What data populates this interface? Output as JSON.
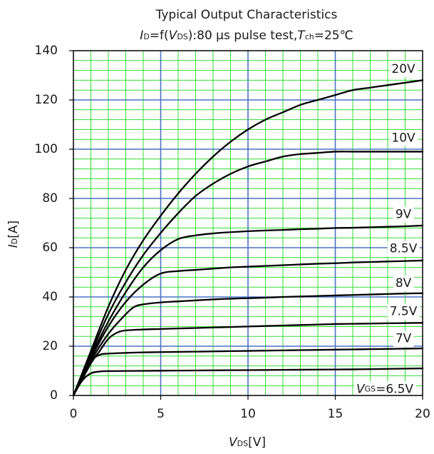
{
  "chart_data": {
    "type": "line",
    "title": "Typical Output Characteristics",
    "subtitle": {
      "id_symbol": "I",
      "id_sub": "D",
      "mid1": "=f(",
      "vds_symbol": "V",
      "vds_sub": "DS",
      "mid2": "):80 μs pulse test,",
      "t_symbol": "T",
      "t_sub": "ch",
      "tail": "=25℃"
    },
    "xlabel": {
      "symbol": "V",
      "sub": "DS",
      "unit": "[V]"
    },
    "ylabel": {
      "symbol": "I",
      "sub": "D",
      "unit": "[A]"
    },
    "xlim": [
      0,
      20
    ],
    "ylim": [
      0,
      140
    ],
    "x_ticks": [
      0,
      5,
      10,
      15,
      20
    ],
    "y_ticks": [
      0,
      20,
      40,
      60,
      80,
      100,
      120,
      140
    ],
    "minor_x_step": 1,
    "minor_y_step": 4,
    "grid": true,
    "colors": {
      "minor_grid": "#33dd33",
      "major_grid": "#4a72c4",
      "curve": "#000000",
      "axis": "#000000"
    },
    "series": [
      {
        "name": "20V",
        "points": [
          [
            0,
            0
          ],
          [
            1,
            18
          ],
          [
            2,
            36
          ],
          [
            3,
            51
          ],
          [
            4,
            63
          ],
          [
            5,
            73
          ],
          [
            6,
            82
          ],
          [
            7,
            90
          ],
          [
            8,
            97
          ],
          [
            9,
            103
          ],
          [
            10,
            108
          ],
          [
            11,
            112
          ],
          [
            12,
            115
          ],
          [
            13,
            118
          ],
          [
            14,
            120
          ],
          [
            15,
            122
          ],
          [
            16,
            124
          ],
          [
            17,
            125
          ],
          [
            18,
            126
          ],
          [
            19,
            127
          ],
          [
            20,
            128
          ]
        ]
      },
      {
        "name": "10V",
        "points": [
          [
            0,
            0
          ],
          [
            1,
            17
          ],
          [
            2,
            33
          ],
          [
            3,
            46
          ],
          [
            4,
            57
          ],
          [
            5,
            66
          ],
          [
            6,
            74
          ],
          [
            7,
            81
          ],
          [
            8,
            86
          ],
          [
            9,
            90
          ],
          [
            10,
            93
          ],
          [
            11,
            95
          ],
          [
            12,
            97
          ],
          [
            13,
            98
          ],
          [
            14,
            98.5
          ],
          [
            15,
            99
          ],
          [
            16,
            99
          ],
          [
            17,
            99
          ],
          [
            18,
            99
          ],
          [
            19,
            99
          ],
          [
            20,
            99
          ]
        ]
      },
      {
        "name": "9V",
        "points": [
          [
            0,
            0
          ],
          [
            1,
            16
          ],
          [
            2,
            30
          ],
          [
            3,
            42
          ],
          [
            4,
            52
          ],
          [
            5,
            59
          ],
          [
            6,
            63.5
          ],
          [
            7,
            65
          ],
          [
            8,
            65.8
          ],
          [
            9,
            66.3
          ],
          [
            10,
            66.7
          ],
          [
            11,
            67
          ],
          [
            12,
            67.2
          ],
          [
            13,
            67.5
          ],
          [
            14,
            67.7
          ],
          [
            15,
            68
          ],
          [
            16,
            68.1
          ],
          [
            17,
            68.3
          ],
          [
            18,
            68.5
          ],
          [
            19,
            68.7
          ],
          [
            20,
            69
          ]
        ]
      },
      {
        "name": "8.5V",
        "points": [
          [
            0,
            0
          ],
          [
            1,
            15
          ],
          [
            2,
            28
          ],
          [
            3,
            38
          ],
          [
            4,
            45
          ],
          [
            5,
            49.5
          ],
          [
            6,
            50.5
          ],
          [
            7,
            51
          ],
          [
            8,
            51.5
          ],
          [
            9,
            52
          ],
          [
            10,
            52.3
          ],
          [
            11,
            52.6
          ],
          [
            12,
            52.9
          ],
          [
            13,
            53.2
          ],
          [
            14,
            53.5
          ],
          [
            15,
            53.7
          ],
          [
            16,
            54
          ],
          [
            17,
            54.2
          ],
          [
            18,
            54.4
          ],
          [
            19,
            54.6
          ],
          [
            20,
            54.8
          ]
        ]
      },
      {
        "name": "8V",
        "points": [
          [
            0,
            0
          ],
          [
            1,
            14
          ],
          [
            2,
            25
          ],
          [
            3,
            33
          ],
          [
            3.5,
            36
          ],
          [
            4,
            37
          ],
          [
            5,
            37.8
          ],
          [
            6,
            38.2
          ],
          [
            7,
            38.6
          ],
          [
            8,
            39
          ],
          [
            9,
            39.3
          ],
          [
            10,
            39.5
          ],
          [
            11,
            39.7
          ],
          [
            12,
            40
          ],
          [
            13,
            40.2
          ],
          [
            14,
            40.4
          ],
          [
            15,
            40.6
          ],
          [
            16,
            40.8
          ],
          [
            17,
            41
          ],
          [
            18,
            41.2
          ],
          [
            19,
            41.4
          ],
          [
            20,
            41.5
          ]
        ]
      },
      {
        "name": "7.5V",
        "points": [
          [
            0,
            0
          ],
          [
            1,
            13
          ],
          [
            1.5,
            18
          ],
          [
            2,
            23
          ],
          [
            2.5,
            25.5
          ],
          [
            3,
            26.4
          ],
          [
            4,
            26.8
          ],
          [
            5,
            27
          ],
          [
            6,
            27.2
          ],
          [
            7,
            27.4
          ],
          [
            8,
            27.6
          ],
          [
            9,
            27.8
          ],
          [
            10,
            28
          ],
          [
            11,
            28.2
          ],
          [
            12,
            28.4
          ],
          [
            13,
            28.6
          ],
          [
            14,
            28.8
          ],
          [
            15,
            29
          ],
          [
            16,
            29.1
          ],
          [
            17,
            29.2
          ],
          [
            18,
            29.3
          ],
          [
            19,
            29.4
          ],
          [
            20,
            29.5
          ]
        ]
      },
      {
        "name": "7V",
        "points": [
          [
            0,
            0
          ],
          [
            0.5,
            8
          ],
          [
            1,
            14
          ],
          [
            1.5,
            16.5
          ],
          [
            2,
            17
          ],
          [
            3,
            17.3
          ],
          [
            4,
            17.5
          ],
          [
            5,
            17.6
          ],
          [
            6,
            17.7
          ],
          [
            7,
            17.8
          ],
          [
            8,
            17.9
          ],
          [
            9,
            18
          ],
          [
            10,
            18.1
          ],
          [
            11,
            18.2
          ],
          [
            12,
            18.3
          ],
          [
            13,
            18.4
          ],
          [
            14,
            18.5
          ],
          [
            15,
            18.6
          ],
          [
            16,
            18.7
          ],
          [
            17,
            18.8
          ],
          [
            18,
            18.9
          ],
          [
            19,
            19
          ],
          [
            20,
            19.1
          ]
        ]
      },
      {
        "name": "V_GS=6.5V",
        "points": [
          [
            0,
            0
          ],
          [
            0.5,
            6
          ],
          [
            1,
            9
          ],
          [
            1.5,
            9.7
          ],
          [
            2,
            9.9
          ],
          [
            4,
            10
          ],
          [
            6,
            10.1
          ],
          [
            8,
            10.2
          ],
          [
            10,
            10.3
          ],
          [
            12,
            10.4
          ],
          [
            14,
            10.5
          ],
          [
            16,
            10.6
          ],
          [
            18,
            10.8
          ],
          [
            20,
            11
          ]
        ]
      }
    ],
    "curve_labels": [
      {
        "text": "20V",
        "x": 18.9,
        "y": 132.5
      },
      {
        "text": "10V",
        "x": 18.9,
        "y": 104.5
      },
      {
        "text": "9V",
        "x": 18.9,
        "y": 73.5
      },
      {
        "text": "8.5V",
        "x": 18.9,
        "y": 59.5
      },
      {
        "text": "8V",
        "x": 18.9,
        "y": 45.5
      },
      {
        "text": "7.5V",
        "x": 18.9,
        "y": 34
      },
      {
        "text": "7V",
        "x": 18.9,
        "y": 23
      }
    ],
    "vgs_label": {
      "symbol": "V",
      "sub": "GS",
      "tail": "=6.5V",
      "x": 18.9,
      "y": 2.5
    }
  }
}
